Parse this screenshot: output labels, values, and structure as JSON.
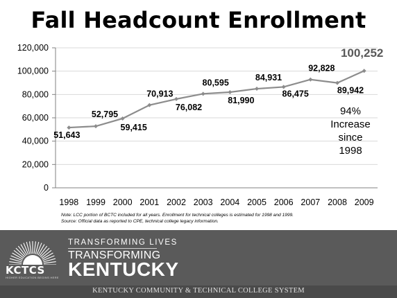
{
  "slide": {
    "title": "Fall Headcount Enrollment",
    "note_line1": "Note:  LCC portion of BCTC included for all years.  Enrollment for technical colleges is estimated for 1998 and 1999.",
    "note_line2": "Source:  Official data as reported to CPE, technical college legacy information."
  },
  "chart_data": {
    "type": "line",
    "x": [
      "1998",
      "1999",
      "2000",
      "2001",
      "2002",
      "2003",
      "2004",
      "2005",
      "2006",
      "2007",
      "2008",
      "2009"
    ],
    "series": [
      {
        "values": [
          51643,
          52795,
          59415,
          70913,
          76082,
          80595,
          81990,
          84931,
          86475,
          92828,
          89942,
          100252
        ]
      }
    ],
    "data_labels": [
      "51,643",
      "52,795",
      "59,415",
      "70,913",
      "76,082",
      "80,595",
      "81,990",
      "84,931",
      "86,475",
      "92,828",
      "89,942",
      "100,252"
    ],
    "y_ticks": [
      0,
      20000,
      40000,
      60000,
      80000,
      100000,
      120000
    ],
    "y_tick_labels": [
      "0",
      "20,000",
      "40,000",
      "60,000",
      "80,000",
      "100,000",
      "120,000"
    ],
    "ylim": [
      0,
      120000
    ],
    "annotation_lines": [
      "94%",
      "Increase",
      "since",
      "1998"
    ],
    "grid": "horizontal",
    "line_color": "#8c8c8c",
    "title": "Fall Headcount Enrollment"
  },
  "footer": {
    "tagline_top": "TRANSFORMING LIVES",
    "tagline_mid": "TRANSFORMING",
    "tagline_bottom": "KENTUCKY",
    "logo_word": "KCTCS",
    "logo_sub": "HIGHER EDUCATION BEGINS HERE",
    "system_name": "KENTUCKY COMMUNITY & TECHNICAL COLLEGE SYSTEM",
    "background": "#5a5a5a"
  }
}
